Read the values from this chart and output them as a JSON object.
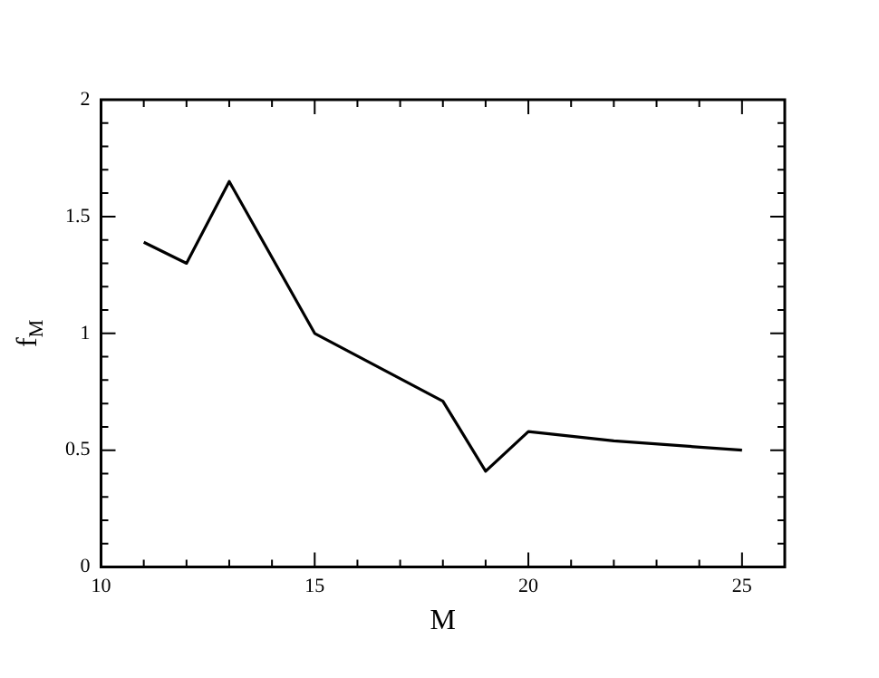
{
  "chart_data": {
    "type": "line",
    "xlabel": "M",
    "ylabel": "f$_{M}$",
    "x": [
      11,
      12,
      13,
      15,
      18,
      19,
      20,
      22,
      25
    ],
    "series": [
      {
        "color": "#000000",
        "values": [
          1.39,
          1.3,
          1.65,
          1.0,
          0.71,
          0.41,
          0.58,
          0.54,
          0.5
        ]
      }
    ],
    "xlim": [
      10,
      26
    ],
    "xticks": [
      10,
      15,
      20,
      25
    ],
    "ylim": [
      0,
      2
    ],
    "yticks": [
      0,
      0.5,
      1,
      1.5,
      2
    ],
    "grid": false,
    "legend": false,
    "marker": "none",
    "line_style": "solid"
  }
}
